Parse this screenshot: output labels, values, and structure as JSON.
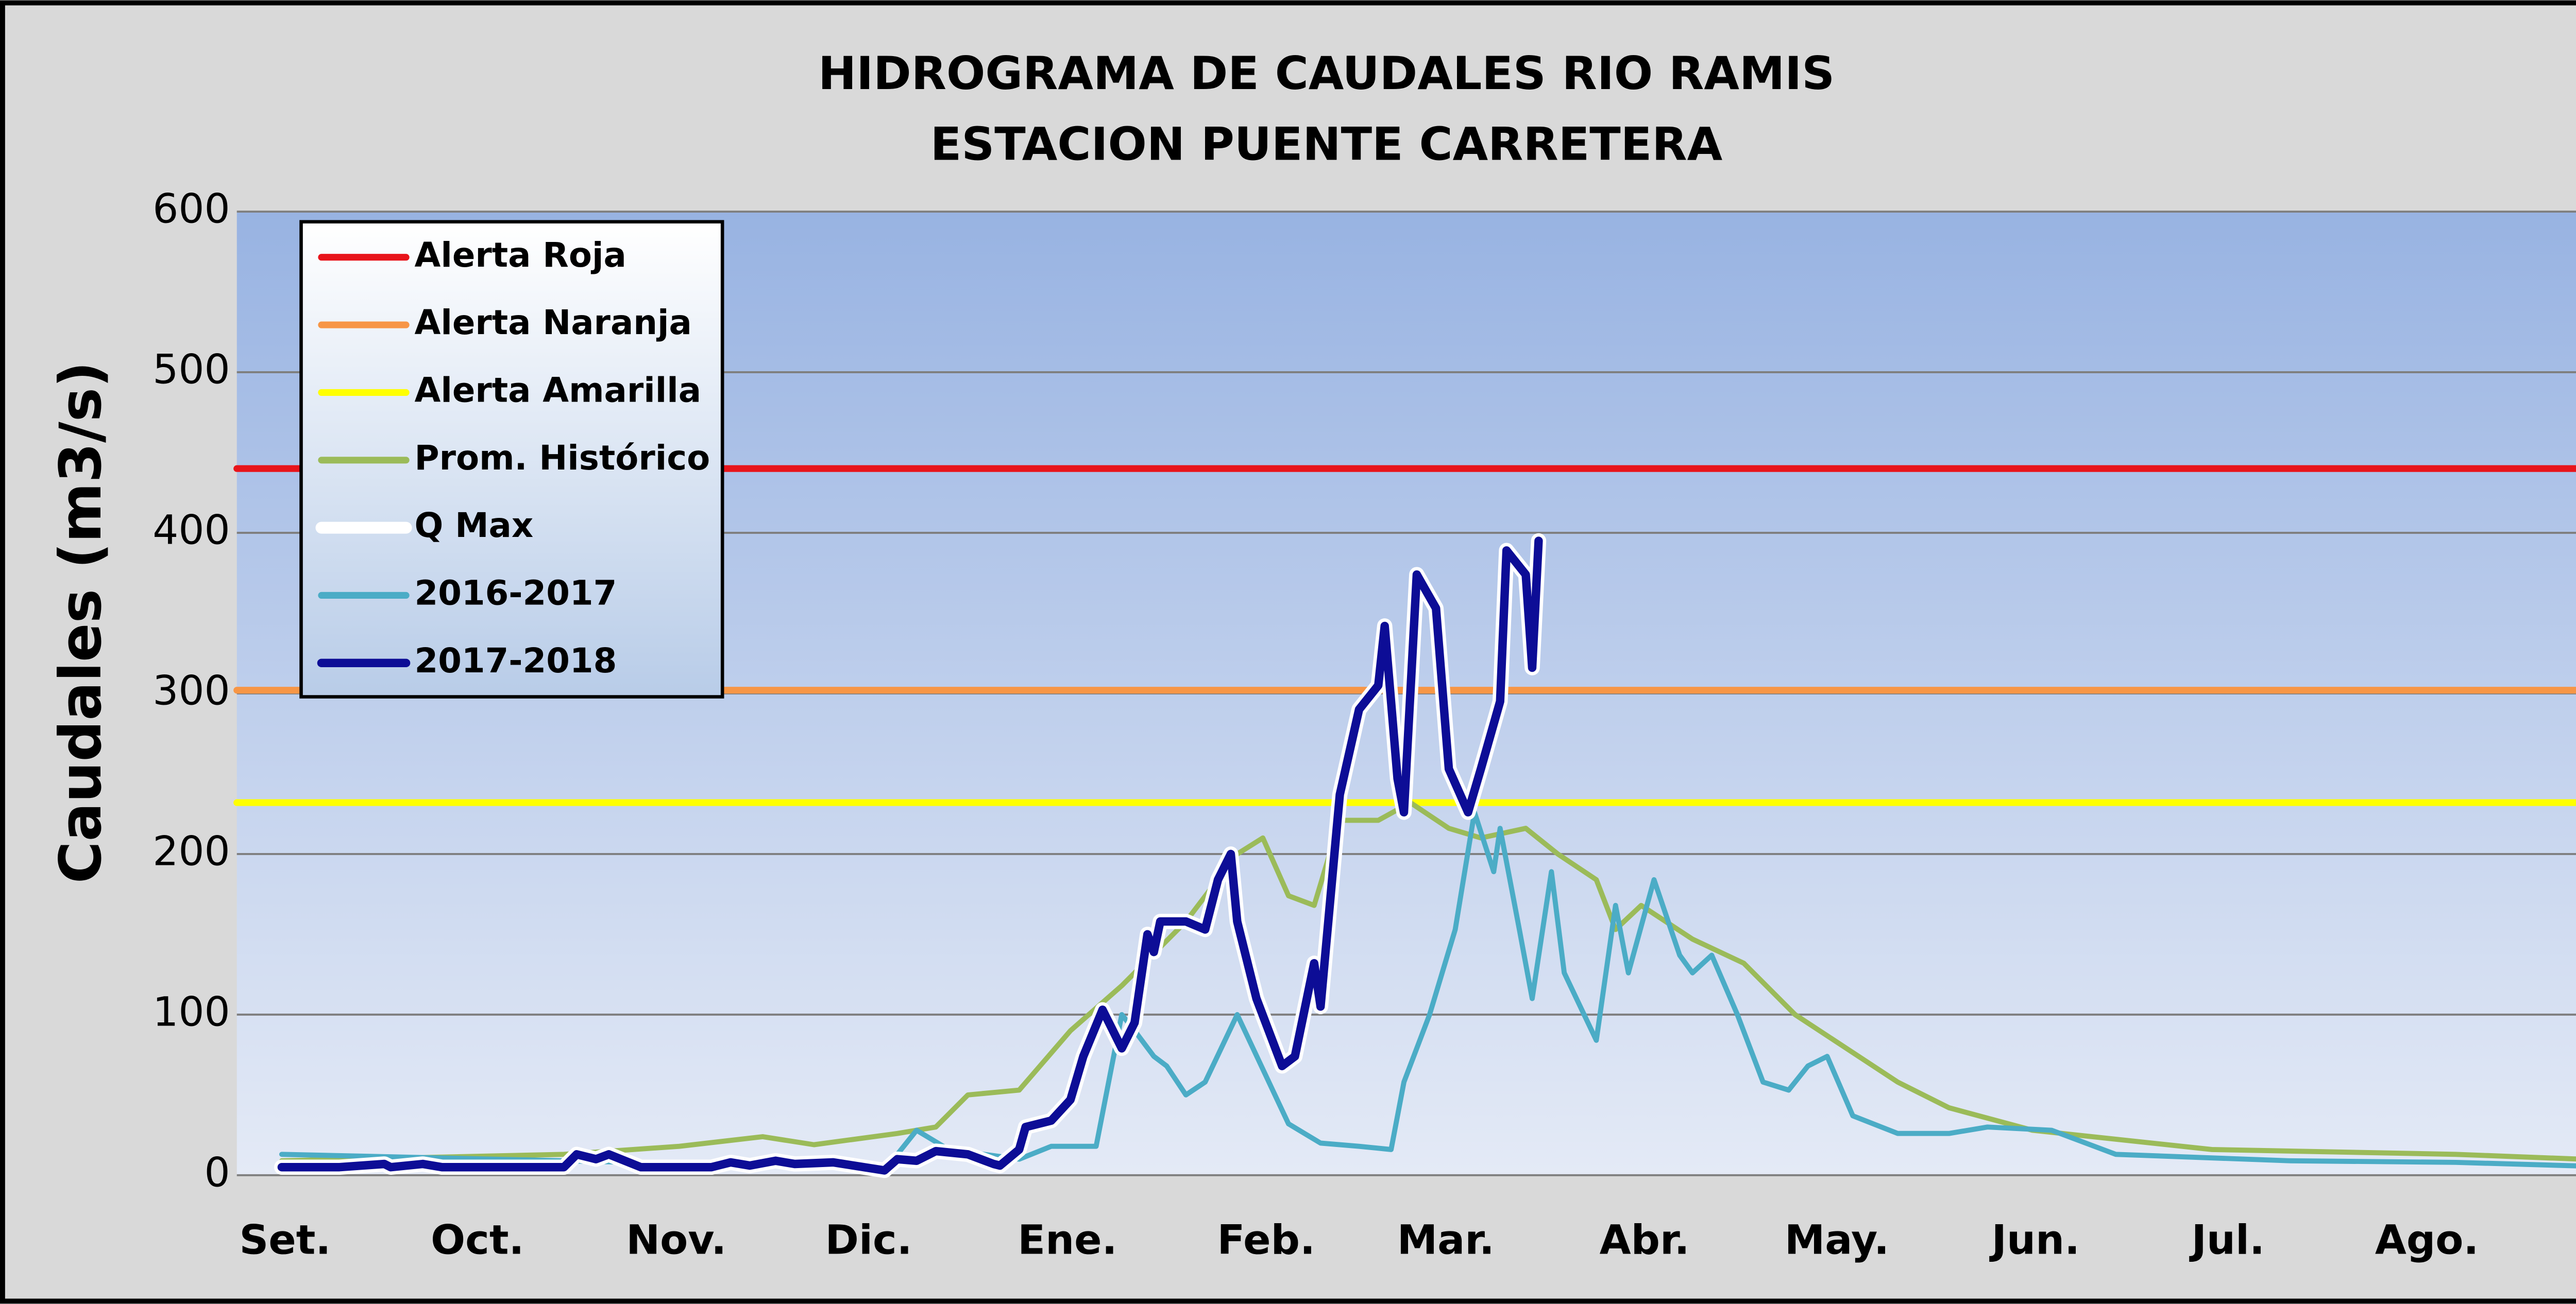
{
  "chart_data": {
    "type": "line",
    "title": "HIDROGRAMA DE CAUDALES RIO RAMIS",
    "subtitle": "ESTACION PUENTE CARRETERA",
    "y_label": "Caudales (m3/s)",
    "ylim": [
      0,
      600
    ],
    "yticks": [
      0,
      100,
      200,
      300,
      400,
      500,
      600
    ],
    "xlim": [
      -7,
      365
    ],
    "xticks": [
      {
        "value": 0,
        "label": "Set."
      },
      {
        "value": 30,
        "label": "Oct."
      },
      {
        "value": 61,
        "label": "Nov."
      },
      {
        "value": 91,
        "label": "Dic."
      },
      {
        "value": 122,
        "label": "Ene."
      },
      {
        "value": 153,
        "label": "Feb."
      },
      {
        "value": 181,
        "label": "Mar."
      },
      {
        "value": 212,
        "label": "Abr."
      },
      {
        "value": 242,
        "label": "May."
      },
      {
        "value": 273,
        "label": "Jun."
      },
      {
        "value": 303,
        "label": "Jul."
      },
      {
        "value": 334,
        "label": "Ago."
      }
    ],
    "grid": true,
    "legend": "top-left",
    "series": [
      {
        "name": "Alerta Roja",
        "color": "#e8141b",
        "x": [
          -7,
          365
        ],
        "values": [
          440,
          440
        ]
      },
      {
        "name": "Alerta Naranja",
        "color": "#f79646",
        "x": [
          -7,
          365
        ],
        "values": [
          302,
          302
        ]
      },
      {
        "name": "Alerta Amarilla",
        "color": "#ffff00",
        "x": [
          -7,
          365
        ],
        "values": [
          232,
          232
        ]
      },
      {
        "name": "Prom. Histórico",
        "color": "#9bbb59",
        "x": [
          0,
          44,
          62,
          75,
          83,
          96,
          102,
          107,
          115,
          123,
          131,
          141,
          149,
          153,
          157,
          161,
          165,
          171,
          176,
          182,
          187,
          194,
          199,
          205,
          208,
          212,
          220,
          228,
          236,
          244,
          252,
          260,
          273,
          301,
          339,
          365
        ],
        "values": [
          9,
          13,
          18,
          24,
          19,
          26,
          30,
          50,
          53,
          90,
          118,
          158,
          200,
          210,
          174,
          168,
          221,
          221,
          232,
          216,
          210,
          216,
          200,
          184,
          153,
          168,
          147,
          132,
          100,
          79,
          58,
          42,
          28,
          16,
          13,
          9
        ]
      },
      {
        "name": "Q Max",
        "color": "#ffffff",
        "x": [
          0,
          9,
          16,
          17,
          22,
          25,
          44,
          46,
          49,
          51,
          56,
          67,
          70,
          73,
          77,
          80,
          86,
          94,
          96,
          99,
          102,
          107,
          111,
          112,
          115,
          116,
          120,
          123,
          125,
          128,
          131,
          133,
          135,
          136,
          137,
          141,
          144,
          146,
          148,
          149,
          152,
          156,
          158,
          161,
          162,
          165,
          168,
          171,
          172,
          174,
          175,
          177,
          180,
          182,
          185,
          187,
          190,
          191,
          194,
          195,
          196
        ],
        "values": [
          5,
          5,
          7,
          5,
          7,
          5,
          5,
          13,
          10,
          13,
          5,
          5,
          8,
          6,
          9,
          7,
          8,
          3,
          10,
          9,
          15,
          13,
          7,
          6,
          16,
          30,
          34,
          47,
          74,
          103,
          79,
          95,
          150,
          139,
          158,
          158,
          153,
          184,
          200,
          158,
          110,
          68,
          74,
          132,
          105,
          237,
          290,
          305,
          342,
          247,
          226,
          374,
          353,
          253,
          226,
          253,
          295,
          389,
          374,
          316,
          395
        ]
      },
      {
        "name": "2016-2017",
        "color": "#4bacc6",
        "x": [
          0,
          44,
          88,
          94,
          99,
          104,
          115,
          120,
          127,
          131,
          133,
          136,
          138,
          141,
          144,
          149,
          157,
          162,
          168,
          173,
          175,
          179,
          183,
          186,
          189,
          190,
          193,
          195,
          198,
          200,
          205,
          208,
          210,
          214,
          218,
          220,
          223,
          227,
          231,
          235,
          238,
          241,
          245,
          252,
          260,
          266,
          276,
          286,
          313,
          339,
          365
        ],
        "values": [
          13,
          9,
          5,
          3,
          28,
          16,
          10,
          18,
          18,
          100,
          90,
          74,
          68,
          50,
          58,
          100,
          32,
          20,
          18,
          16,
          58,
          100,
          153,
          226,
          189,
          216,
          153,
          110,
          189,
          126,
          84,
          168,
          126,
          184,
          137,
          126,
          137,
          100,
          58,
          53,
          68,
          74,
          37,
          26,
          26,
          30,
          28,
          13,
          9,
          8,
          5
        ]
      },
      {
        "name": "2017-2018",
        "color": "#0d0d96",
        "x": [
          0,
          9,
          16,
          17,
          22,
          25,
          44,
          46,
          49,
          51,
          56,
          67,
          70,
          73,
          77,
          80,
          86,
          94,
          96,
          99,
          102,
          107,
          111,
          112,
          115,
          116,
          120,
          123,
          125,
          128,
          131,
          133,
          135,
          136,
          137,
          141,
          144,
          146,
          148,
          149,
          152,
          156,
          158,
          161,
          162,
          165,
          168,
          171,
          172,
          174,
          175,
          177,
          180,
          182,
          185,
          187,
          190,
          191,
          194,
          195,
          196
        ],
        "values": [
          5,
          5,
          7,
          5,
          7,
          5,
          5,
          13,
          10,
          13,
          5,
          5,
          8,
          6,
          9,
          7,
          8,
          3,
          10,
          9,
          15,
          13,
          7,
          6,
          16,
          30,
          34,
          47,
          74,
          103,
          79,
          95,
          150,
          139,
          158,
          158,
          153,
          184,
          200,
          158,
          110,
          68,
          74,
          132,
          105,
          237,
          290,
          305,
          342,
          247,
          226,
          374,
          353,
          253,
          226,
          253,
          295,
          389,
          374,
          316,
          395
        ]
      }
    ]
  }
}
